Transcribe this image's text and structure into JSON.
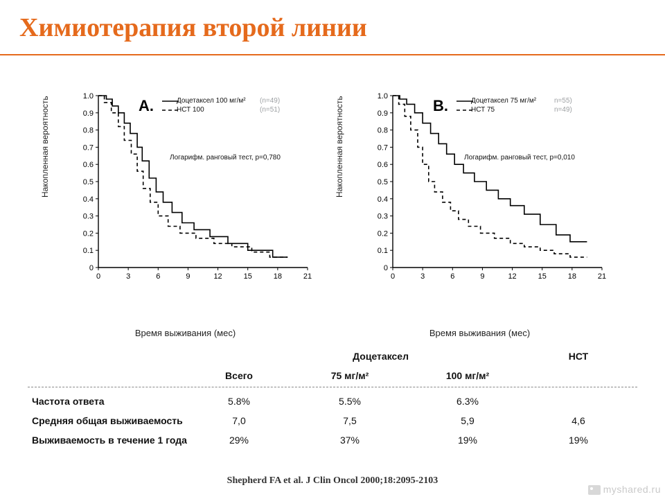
{
  "title": "Химиотерапия второй линии",
  "colors": {
    "accent": "#e56a1c",
    "text": "#111111",
    "muted": "#9DA0A3",
    "axis": "#000000",
    "background": "#ffffff",
    "dash_sep": "#888888"
  },
  "charts": {
    "common": {
      "ylabel": "Накопленная вероятность",
      "xlabel": "Время выживания (мес)",
      "xlim": [
        0,
        21
      ],
      "ylim": [
        0,
        1.0
      ],
      "xticks": [
        0,
        3,
        6,
        9,
        12,
        15,
        18,
        21
      ],
      "yticks": [
        0,
        0.1,
        0.2,
        0.3,
        0.4,
        0.5,
        0.6,
        0.7,
        0.8,
        0.9,
        1.0
      ],
      "y_tick_labels": [
        "0",
        "0.1",
        "0.2",
        "0.3",
        "0.4",
        "0.5",
        "0.6",
        "0.7",
        "0.8",
        "0.9",
        "1.0"
      ],
      "line_width": 1.6,
      "dash_pattern": "5 4",
      "tick_fontsize": 11,
      "label_fontsize": 12,
      "panel_letter_fontsize": 22
    },
    "A": {
      "panel_letter": "A.",
      "legend": {
        "series1": {
          "label": "Доцетаксел 100 мг/м²",
          "style": "solid",
          "n": "(n=49)"
        },
        "series2": {
          "label": "НСТ 100",
          "style": "dash",
          "n": "(n=51)"
        }
      },
      "test_note": "Логарифм. ранговый тест, p=0,780",
      "series_solid": [
        [
          0,
          1.0
        ],
        [
          0.8,
          1.0
        ],
        [
          0.8,
          0.98
        ],
        [
          1.4,
          0.98
        ],
        [
          1.4,
          0.94
        ],
        [
          2.0,
          0.94
        ],
        [
          2.0,
          0.9
        ],
        [
          2.6,
          0.9
        ],
        [
          2.6,
          0.84
        ],
        [
          3.2,
          0.84
        ],
        [
          3.2,
          0.78
        ],
        [
          3.9,
          0.78
        ],
        [
          3.9,
          0.7
        ],
        [
          4.4,
          0.7
        ],
        [
          4.4,
          0.62
        ],
        [
          5.1,
          0.62
        ],
        [
          5.1,
          0.52
        ],
        [
          5.8,
          0.52
        ],
        [
          5.8,
          0.44
        ],
        [
          6.5,
          0.44
        ],
        [
          6.5,
          0.38
        ],
        [
          7.4,
          0.38
        ],
        [
          7.4,
          0.32
        ],
        [
          8.4,
          0.32
        ],
        [
          8.4,
          0.26
        ],
        [
          9.6,
          0.26
        ],
        [
          9.6,
          0.22
        ],
        [
          11.2,
          0.22
        ],
        [
          11.2,
          0.18
        ],
        [
          13.0,
          0.18
        ],
        [
          13.0,
          0.14
        ],
        [
          15.0,
          0.14
        ],
        [
          15.0,
          0.1
        ],
        [
          17.5,
          0.1
        ],
        [
          17.5,
          0.06
        ],
        [
          19.0,
          0.06
        ]
      ],
      "series_dash": [
        [
          0,
          1.0
        ],
        [
          0.6,
          1.0
        ],
        [
          0.6,
          0.96
        ],
        [
          1.3,
          0.96
        ],
        [
          1.3,
          0.9
        ],
        [
          2.0,
          0.9
        ],
        [
          2.0,
          0.82
        ],
        [
          2.6,
          0.82
        ],
        [
          2.6,
          0.74
        ],
        [
          3.3,
          0.74
        ],
        [
          3.3,
          0.66
        ],
        [
          3.9,
          0.66
        ],
        [
          3.9,
          0.56
        ],
        [
          4.5,
          0.56
        ],
        [
          4.5,
          0.46
        ],
        [
          5.2,
          0.46
        ],
        [
          5.2,
          0.38
        ],
        [
          6.0,
          0.38
        ],
        [
          6.0,
          0.3
        ],
        [
          7.0,
          0.3
        ],
        [
          7.0,
          0.24
        ],
        [
          8.2,
          0.24
        ],
        [
          8.2,
          0.2
        ],
        [
          9.8,
          0.2
        ],
        [
          9.8,
          0.17
        ],
        [
          11.6,
          0.17
        ],
        [
          11.6,
          0.14
        ],
        [
          13.4,
          0.14
        ],
        [
          13.4,
          0.12
        ],
        [
          15.4,
          0.12
        ],
        [
          15.4,
          0.09
        ],
        [
          17.2,
          0.09
        ],
        [
          17.2,
          0.06
        ],
        [
          19.0,
          0.06
        ]
      ]
    },
    "B": {
      "panel_letter": "B.",
      "legend": {
        "series1": {
          "label": "Доцетаксел 75 мг/м²",
          "style": "solid",
          "n": "n=55)"
        },
        "series2": {
          "label": "НСТ 75",
          "style": "dash",
          "n": "n=49)"
        }
      },
      "test_note": "Логарифм. ранговый тест, p=0,010",
      "series_solid": [
        [
          0,
          1.0
        ],
        [
          0.7,
          1.0
        ],
        [
          0.7,
          0.98
        ],
        [
          1.4,
          0.98
        ],
        [
          1.4,
          0.95
        ],
        [
          2.2,
          0.95
        ],
        [
          2.2,
          0.9
        ],
        [
          3.0,
          0.9
        ],
        [
          3.0,
          0.84
        ],
        [
          3.8,
          0.84
        ],
        [
          3.8,
          0.78
        ],
        [
          4.6,
          0.78
        ],
        [
          4.6,
          0.72
        ],
        [
          5.4,
          0.72
        ],
        [
          5.4,
          0.66
        ],
        [
          6.2,
          0.66
        ],
        [
          6.2,
          0.6
        ],
        [
          7.1,
          0.6
        ],
        [
          7.1,
          0.55
        ],
        [
          8.2,
          0.55
        ],
        [
          8.2,
          0.5
        ],
        [
          9.4,
          0.5
        ],
        [
          9.4,
          0.45
        ],
        [
          10.6,
          0.45
        ],
        [
          10.6,
          0.4
        ],
        [
          11.8,
          0.4
        ],
        [
          11.8,
          0.36
        ],
        [
          13.2,
          0.36
        ],
        [
          13.2,
          0.31
        ],
        [
          14.8,
          0.31
        ],
        [
          14.8,
          0.25
        ],
        [
          16.4,
          0.25
        ],
        [
          16.4,
          0.19
        ],
        [
          17.8,
          0.19
        ],
        [
          17.8,
          0.15
        ],
        [
          19.5,
          0.15
        ]
      ],
      "series_dash": [
        [
          0,
          1.0
        ],
        [
          0.6,
          1.0
        ],
        [
          0.6,
          0.95
        ],
        [
          1.2,
          0.95
        ],
        [
          1.2,
          0.88
        ],
        [
          1.8,
          0.88
        ],
        [
          1.8,
          0.8
        ],
        [
          2.5,
          0.8
        ],
        [
          2.5,
          0.7
        ],
        [
          3.0,
          0.7
        ],
        [
          3.0,
          0.6
        ],
        [
          3.6,
          0.6
        ],
        [
          3.6,
          0.5
        ],
        [
          4.2,
          0.5
        ],
        [
          4.2,
          0.44
        ],
        [
          5.0,
          0.44
        ],
        [
          5.0,
          0.38
        ],
        [
          5.8,
          0.38
        ],
        [
          5.8,
          0.33
        ],
        [
          6.6,
          0.33
        ],
        [
          6.6,
          0.28
        ],
        [
          7.6,
          0.28
        ],
        [
          7.6,
          0.24
        ],
        [
          8.8,
          0.24
        ],
        [
          8.8,
          0.2
        ],
        [
          10.2,
          0.2
        ],
        [
          10.2,
          0.17
        ],
        [
          11.8,
          0.17
        ],
        [
          11.8,
          0.14
        ],
        [
          13.2,
          0.14
        ],
        [
          13.2,
          0.12
        ],
        [
          14.8,
          0.12
        ],
        [
          14.8,
          0.1
        ],
        [
          16.2,
          0.1
        ],
        [
          16.2,
          0.08
        ],
        [
          17.8,
          0.08
        ],
        [
          17.8,
          0.06
        ],
        [
          19.5,
          0.06
        ]
      ]
    }
  },
  "table": {
    "header_group": "Доцетаксел",
    "columns": [
      "",
      "Всего",
      "75 мг/м²",
      "100 мг/м²",
      "НСТ"
    ],
    "rows": [
      {
        "label": "Частота ответа",
        "vals": [
          "5.8%",
          "5.5%",
          "6.3%",
          ""
        ]
      },
      {
        "label": "Средняя общая выживаемость",
        "vals": [
          "7,0",
          "7,5",
          "5,9",
          "4,6"
        ]
      },
      {
        "label": "Выживаемость в течение 1 года",
        "vals": [
          "29%",
          "37%",
          "19%",
          "19%"
        ]
      }
    ]
  },
  "citation": "Shepherd FA et al. J Clin Oncol 2000;18:2095-2103",
  "watermark": "myshared.ru"
}
